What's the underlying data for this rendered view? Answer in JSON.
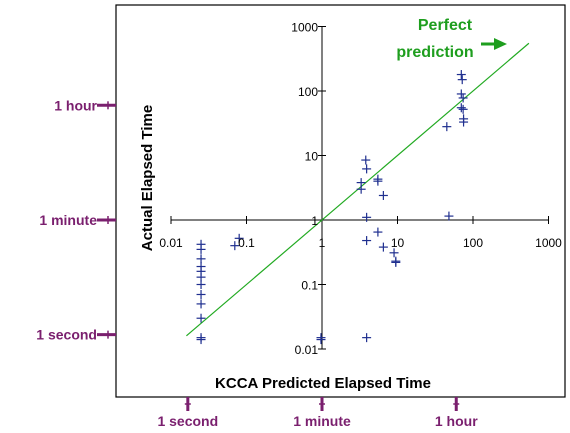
{
  "chart_data": {
    "type": "scatter",
    "xlabel": "KCCA Predicted Elapsed Time",
    "ylabel": "Actual Elapsed Time",
    "x_scale": "log",
    "y_scale": "log",
    "xlim": [
      0.01,
      1000
    ],
    "ylim": [
      0.01,
      1000
    ],
    "x_ticks": [
      "0.01",
      "0.1",
      "1",
      "10",
      "100",
      "1000"
    ],
    "y_ticks": [
      "0.01",
      "0.1",
      "1",
      "10",
      "100",
      "1000"
    ],
    "grid": false,
    "marker": "plus",
    "colors": {
      "points": "#1f2f8f",
      "line": "#22aa22",
      "annotation": "#7a1f6e",
      "prediction_label": "#1e9e1e"
    },
    "reference_line": {
      "name": "Perfect prediction",
      "label_lines": [
        "Perfect",
        "prediction"
      ],
      "slope": 1
    },
    "x_annotations": [
      {
        "label": "1 second",
        "value": 0.0167
      },
      {
        "label": "1 minute",
        "value": 1
      },
      {
        "label": "1 hour",
        "value": 60
      }
    ],
    "y_annotations": [
      {
        "label": "1 hour",
        "value": 60
      },
      {
        "label": "1 minute",
        "value": 1
      },
      {
        "label": "1 second",
        "value": 0.0167
      }
    ],
    "points": [
      {
        "x": 0.025,
        "y": 0.42
      },
      {
        "x": 0.025,
        "y": 0.35
      },
      {
        "x": 0.025,
        "y": 0.25
      },
      {
        "x": 0.025,
        "y": 0.19
      },
      {
        "x": 0.025,
        "y": 0.16
      },
      {
        "x": 0.025,
        "y": 0.13
      },
      {
        "x": 0.025,
        "y": 0.1
      },
      {
        "x": 0.025,
        "y": 0.07
      },
      {
        "x": 0.025,
        "y": 0.05
      },
      {
        "x": 0.025,
        "y": 0.03
      },
      {
        "x": 0.025,
        "y": 0.015
      },
      {
        "x": 0.025,
        "y": 0.014
      },
      {
        "x": 0.07,
        "y": 0.4
      },
      {
        "x": 0.08,
        "y": 0.52
      },
      {
        "x": 0.97,
        "y": 0.015
      },
      {
        "x": 0.97,
        "y": 0.014
      },
      {
        "x": 3.3,
        "y": 3.8
      },
      {
        "x": 3.3,
        "y": 3.0
      },
      {
        "x": 3.8,
        "y": 8.5
      },
      {
        "x": 3.9,
        "y": 6.2
      },
      {
        "x": 3.9,
        "y": 1.1
      },
      {
        "x": 3.9,
        "y": 0.48
      },
      {
        "x": 3.9,
        "y": 0.015
      },
      {
        "x": 5.5,
        "y": 4.3
      },
      {
        "x": 5.5,
        "y": 4.0
      },
      {
        "x": 5.5,
        "y": 0.65
      },
      {
        "x": 6.5,
        "y": 2.4
      },
      {
        "x": 6.5,
        "y": 0.38
      },
      {
        "x": 9.0,
        "y": 0.31
      },
      {
        "x": 9.5,
        "y": 0.23
      },
      {
        "x": 9.5,
        "y": 0.22
      },
      {
        "x": 45,
        "y": 28
      },
      {
        "x": 48,
        "y": 1.15
      },
      {
        "x": 70,
        "y": 180
      },
      {
        "x": 72,
        "y": 150
      },
      {
        "x": 70,
        "y": 90
      },
      {
        "x": 74,
        "y": 78
      },
      {
        "x": 70,
        "y": 55
      },
      {
        "x": 74,
        "y": 52
      },
      {
        "x": 75,
        "y": 37
      },
      {
        "x": 75,
        "y": 33
      }
    ]
  }
}
